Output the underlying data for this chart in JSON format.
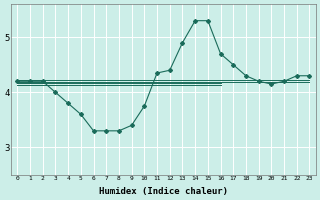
{
  "xlabel": "Humidex (Indice chaleur)",
  "bg_color": "#cceee8",
  "grid_color": "#ffffff",
  "line_color": "#1a6b5a",
  "xlim": [
    -0.5,
    23.5
  ],
  "ylim": [
    2.5,
    5.6
  ],
  "yticks": [
    3,
    4,
    5
  ],
  "x_ticks": [
    0,
    1,
    2,
    3,
    4,
    5,
    6,
    7,
    8,
    9,
    10,
    11,
    12,
    13,
    14,
    15,
    16,
    17,
    18,
    19,
    20,
    21,
    22,
    23
  ],
  "main_series": [
    4.2,
    4.2,
    4.2,
    4.0,
    3.8,
    3.6,
    3.3,
    3.3,
    3.3,
    3.4,
    3.75,
    4.35,
    4.4,
    4.9,
    5.3,
    5.3,
    4.7,
    4.5,
    4.3,
    4.2,
    4.15,
    4.2,
    4.3,
    4.3
  ],
  "flat_lines": [
    {
      "y": 4.22,
      "x_start": 0,
      "x_end": 23
    },
    {
      "y": 4.19,
      "x_start": 0,
      "x_end": 23
    },
    {
      "y": 4.16,
      "x_start": 0,
      "x_end": 16
    },
    {
      "y": 4.13,
      "x_start": 0,
      "x_end": 16
    }
  ]
}
